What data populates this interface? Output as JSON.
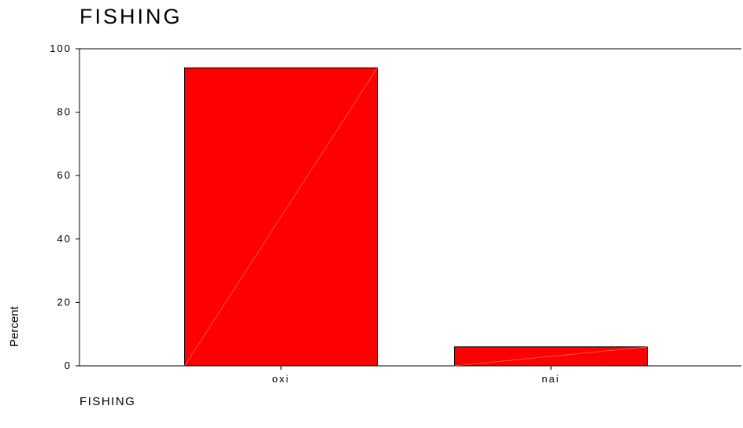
{
  "chart_data": {
    "type": "bar",
    "title": "FISHING",
    "xlabel": "FISHING",
    "ylabel": "Percent",
    "categories": [
      "oxi",
      "nai"
    ],
    "values": [
      94,
      6
    ],
    "ylim": [
      0,
      100
    ],
    "yticks": [
      "100",
      "80",
      "60",
      "40",
      "20",
      "0"
    ],
    "bar_color": "#ff0000",
    "grid": false
  }
}
